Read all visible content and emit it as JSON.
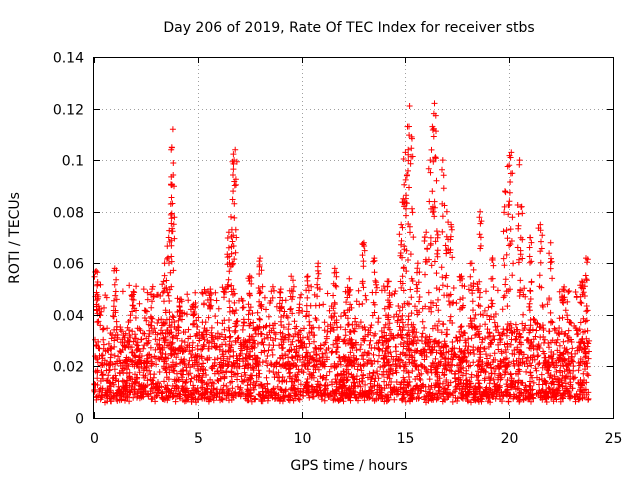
{
  "chart_data": {
    "type": "scatter",
    "title": "Day 206 of 2019, Rate Of TEC Index for receiver stbs",
    "xlabel": "GPS time / hours",
    "ylabel": "ROTI / TECUs",
    "xlim": [
      0,
      25
    ],
    "ylim": [
      0,
      0.14
    ],
    "xticks": [
      0,
      5,
      10,
      15,
      20,
      25
    ],
    "xtick_labels": [
      "0",
      "5",
      "10",
      "15",
      "20",
      "25"
    ],
    "yticks": [
      0,
      0.02,
      0.04,
      0.06,
      0.08,
      0.1,
      0.12,
      0.14
    ],
    "ytick_labels": [
      "0",
      "0.02",
      "0.04",
      "0.06",
      "0.08",
      "0.1",
      "0.12",
      "0.14"
    ],
    "grid": true,
    "marker": "+",
    "color": "#ff0000",
    "series": [
      {
        "name": "ROTI",
        "description_of_envelope": "dense band 0.005-0.03 across 0-24 h; spikes below",
        "spikes": [
          {
            "x": 0.1,
            "y": 0.057
          },
          {
            "x": 0.2,
            "y": 0.047
          },
          {
            "x": 1.0,
            "y": 0.058
          },
          {
            "x": 1.9,
            "y": 0.049
          },
          {
            "x": 2.8,
            "y": 0.05
          },
          {
            "x": 3.4,
            "y": 0.06
          },
          {
            "x": 3.6,
            "y": 0.07
          },
          {
            "x": 3.7,
            "y": 0.083
          },
          {
            "x": 3.75,
            "y": 0.105
          },
          {
            "x": 3.8,
            "y": 0.112
          },
          {
            "x": 4.2,
            "y": 0.046
          },
          {
            "x": 4.8,
            "y": 0.044
          },
          {
            "x": 5.6,
            "y": 0.05
          },
          {
            "x": 6.5,
            "y": 0.072
          },
          {
            "x": 6.6,
            "y": 0.078
          },
          {
            "x": 6.7,
            "y": 0.088
          },
          {
            "x": 6.75,
            "y": 0.1
          },
          {
            "x": 6.8,
            "y": 0.104
          },
          {
            "x": 7.5,
            "y": 0.055
          },
          {
            "x": 8.0,
            "y": 0.062
          },
          {
            "x": 9.0,
            "y": 0.05
          },
          {
            "x": 9.5,
            "y": 0.055
          },
          {
            "x": 10.3,
            "y": 0.055
          },
          {
            "x": 10.8,
            "y": 0.06
          },
          {
            "x": 11.6,
            "y": 0.058
          },
          {
            "x": 12.3,
            "y": 0.054
          },
          {
            "x": 13.0,
            "y": 0.068
          },
          {
            "x": 13.5,
            "y": 0.062
          },
          {
            "x": 14.2,
            "y": 0.053
          },
          {
            "x": 14.8,
            "y": 0.075
          },
          {
            "x": 14.9,
            "y": 0.085
          },
          {
            "x": 15.0,
            "y": 0.103
          },
          {
            "x": 15.1,
            "y": 0.113
          },
          {
            "x": 15.2,
            "y": 0.121
          },
          {
            "x": 15.3,
            "y": 0.109
          },
          {
            "x": 15.6,
            "y": 0.06
          },
          {
            "x": 16.0,
            "y": 0.072
          },
          {
            "x": 16.2,
            "y": 0.1
          },
          {
            "x": 16.3,
            "y": 0.113
          },
          {
            "x": 16.4,
            "y": 0.122
          },
          {
            "x": 16.5,
            "y": 0.092
          },
          {
            "x": 16.8,
            "y": 0.1
          },
          {
            "x": 17.0,
            "y": 0.08
          },
          {
            "x": 17.2,
            "y": 0.075
          },
          {
            "x": 17.7,
            "y": 0.055
          },
          {
            "x": 18.2,
            "y": 0.06
          },
          {
            "x": 18.6,
            "y": 0.08
          },
          {
            "x": 19.2,
            "y": 0.062
          },
          {
            "x": 19.8,
            "y": 0.088
          },
          {
            "x": 20.0,
            "y": 0.098
          },
          {
            "x": 20.1,
            "y": 0.103
          },
          {
            "x": 20.5,
            "y": 0.1
          },
          {
            "x": 20.6,
            "y": 0.082
          },
          {
            "x": 21.0,
            "y": 0.07
          },
          {
            "x": 21.5,
            "y": 0.075
          },
          {
            "x": 22.0,
            "y": 0.068
          },
          {
            "x": 22.6,
            "y": 0.05
          },
          {
            "x": 23.5,
            "y": 0.053
          },
          {
            "x": 23.7,
            "y": 0.062
          }
        ]
      }
    ]
  }
}
